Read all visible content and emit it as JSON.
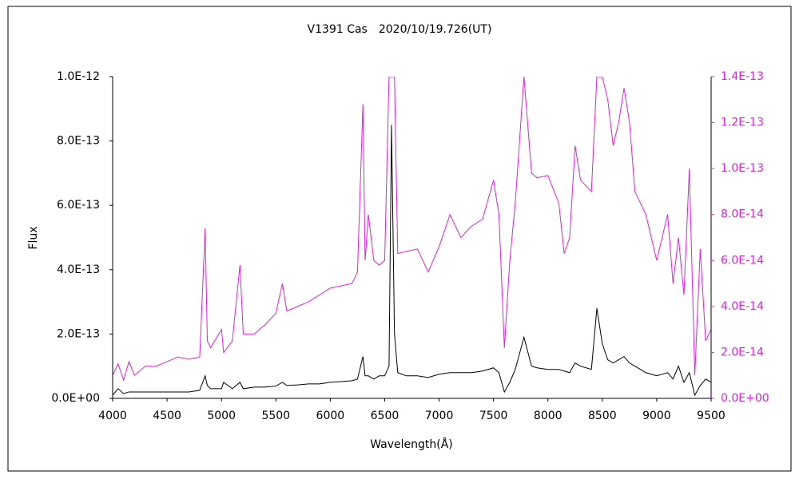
{
  "chart_data": {
    "type": "line",
    "title": "V1391 Cas　2020/10/19.726(UT)",
    "xlabel": "Wavelength(Å)",
    "ylabel": "Flux",
    "x": [
      4000,
      4050,
      4100,
      4150,
      4200,
      4300,
      4400,
      4500,
      4600,
      4700,
      4800,
      4850,
      4870,
      4900,
      5000,
      5020,
      5100,
      5170,
      5200,
      5300,
      5400,
      5500,
      5560,
      5600,
      5700,
      5800,
      5900,
      6000,
      6100,
      6200,
      6250,
      6300,
      6320,
      6350,
      6400,
      6450,
      6500,
      6540,
      6563,
      6590,
      6620,
      6700,
      6800,
      6900,
      7000,
      7100,
      7200,
      7300,
      7400,
      7500,
      7550,
      7600,
      7650,
      7700,
      7780,
      7850,
      7900,
      8000,
      8100,
      8150,
      8200,
      8250,
      8300,
      8400,
      8450,
      8500,
      8550,
      8600,
      8650,
      8700,
      8750,
      8800,
      8850,
      8900,
      9000,
      9100,
      9150,
      9200,
      9250,
      9300,
      9350,
      9400,
      9450,
      9500
    ],
    "series": [
      {
        "color": "#000000",
        "values": [
          1e-14,
          3e-14,
          1.5e-14,
          2e-14,
          2e-14,
          2e-14,
          2e-14,
          2e-14,
          2e-14,
          2e-14,
          2.5e-14,
          7e-14,
          4e-14,
          3e-14,
          3e-14,
          5e-14,
          3e-14,
          5e-14,
          3e-14,
          3.5e-14,
          3.5e-14,
          3.8e-14,
          5e-14,
          4e-14,
          4.2e-14,
          4.5e-14,
          4.5e-14,
          5e-14,
          5.2e-14,
          5.5e-14,
          6e-14,
          1.3e-13,
          7e-14,
          7e-14,
          6e-14,
          7e-14,
          7e-14,
          1e-13,
          8.5e-13,
          2e-13,
          8e-14,
          7e-14,
          7e-14,
          6.5e-14,
          7.5e-14,
          8e-14,
          8e-14,
          8e-14,
          8.5e-14,
          9.5e-14,
          8e-14,
          2e-14,
          5e-14,
          9e-14,
          1.9e-13,
          1e-13,
          9.5e-14,
          9e-14,
          9e-14,
          8.5e-14,
          8e-14,
          1.1e-13,
          1e-13,
          9e-14,
          2.8e-13,
          1.7e-13,
          1.2e-13,
          1.1e-13,
          1.2e-13,
          1.3e-13,
          1.1e-13,
          1e-13,
          9e-14,
          8e-14,
          7e-14,
          8e-14,
          6e-14,
          1e-13,
          5e-14,
          8e-14,
          1e-14,
          4e-14,
          6e-14,
          5e-14
        ]
      },
      {
        "color": "#e020e0",
        "axis": "y2",
        "values": [
          1e-14,
          1.5e-14,
          8e-15,
          1.6e-14,
          1e-14,
          1.4e-14,
          1.4e-14,
          1.6e-14,
          1.8e-14,
          1.7e-14,
          1.8e-14,
          7.4e-14,
          2.5e-14,
          2.2e-14,
          3e-14,
          2e-14,
          2.5e-14,
          5.8e-14,
          2.8e-14,
          2.8e-14,
          3.2e-14,
          3.7e-14,
          5e-14,
          3.8e-14,
          4e-14,
          4.2e-14,
          4.5e-14,
          4.8e-14,
          4.9e-14,
          5e-14,
          5.5e-14,
          1.28e-13,
          6e-14,
          8e-14,
          6e-14,
          5.8e-14,
          6e-14,
          1.4e-13,
          1.4e-13,
          1.4e-13,
          6.3e-14,
          6.4e-14,
          6.5e-14,
          5.5e-14,
          6.6e-14,
          8e-14,
          7e-14,
          7.5e-14,
          7.8e-14,
          9.5e-14,
          8e-14,
          2.2e-14,
          6e-14,
          8.5e-14,
          1.4e-13,
          9.8e-14,
          9.6e-14,
          9.7e-14,
          8.5e-14,
          6.3e-14,
          7e-14,
          1.1e-13,
          9.5e-14,
          9e-14,
          1.4e-13,
          1.4e-13,
          1.3e-13,
          1.1e-13,
          1.2e-13,
          1.35e-13,
          1.2e-13,
          9e-14,
          8.5e-14,
          8e-14,
          6e-14,
          8e-14,
          5e-14,
          7e-14,
          4.5e-14,
          1e-13,
          1e-14,
          6.5e-14,
          2.5e-14,
          3e-14
        ]
      }
    ],
    "xlim": [
      4000,
      9500
    ],
    "xticks": [
      4000,
      4500,
      5000,
      5500,
      6000,
      6500,
      7000,
      7500,
      8000,
      8500,
      9000,
      9500
    ],
    "ylim": [
      0,
      1e-12
    ],
    "yticks": [
      {
        "value": 0,
        "label": "0.0E+00"
      },
      {
        "value": 2e-13,
        "label": "2.0E-13"
      },
      {
        "value": 4e-13,
        "label": "4.0E-13"
      },
      {
        "value": 6e-13,
        "label": "6.0E-13"
      },
      {
        "value": 8e-13,
        "label": "8.0E-13"
      },
      {
        "value": 1e-12,
        "label": "1.0E-12"
      }
    ],
    "y2lim": [
      0,
      1.4e-13
    ],
    "y2ticks": [
      {
        "value": 0,
        "label": "0.0E+00"
      },
      {
        "value": 2e-14,
        "label": "2.0E-14"
      },
      {
        "value": 4e-14,
        "label": "4.0E-14"
      },
      {
        "value": 6e-14,
        "label": "6.0E-14"
      },
      {
        "value": 8e-14,
        "label": "8.0E-14"
      },
      {
        "value": 1e-13,
        "label": "1.0E-13"
      },
      {
        "value": 1.2e-13,
        "label": "1.2E-13"
      },
      {
        "value": 1.4e-13,
        "label": "1.4E-13"
      }
    ]
  }
}
